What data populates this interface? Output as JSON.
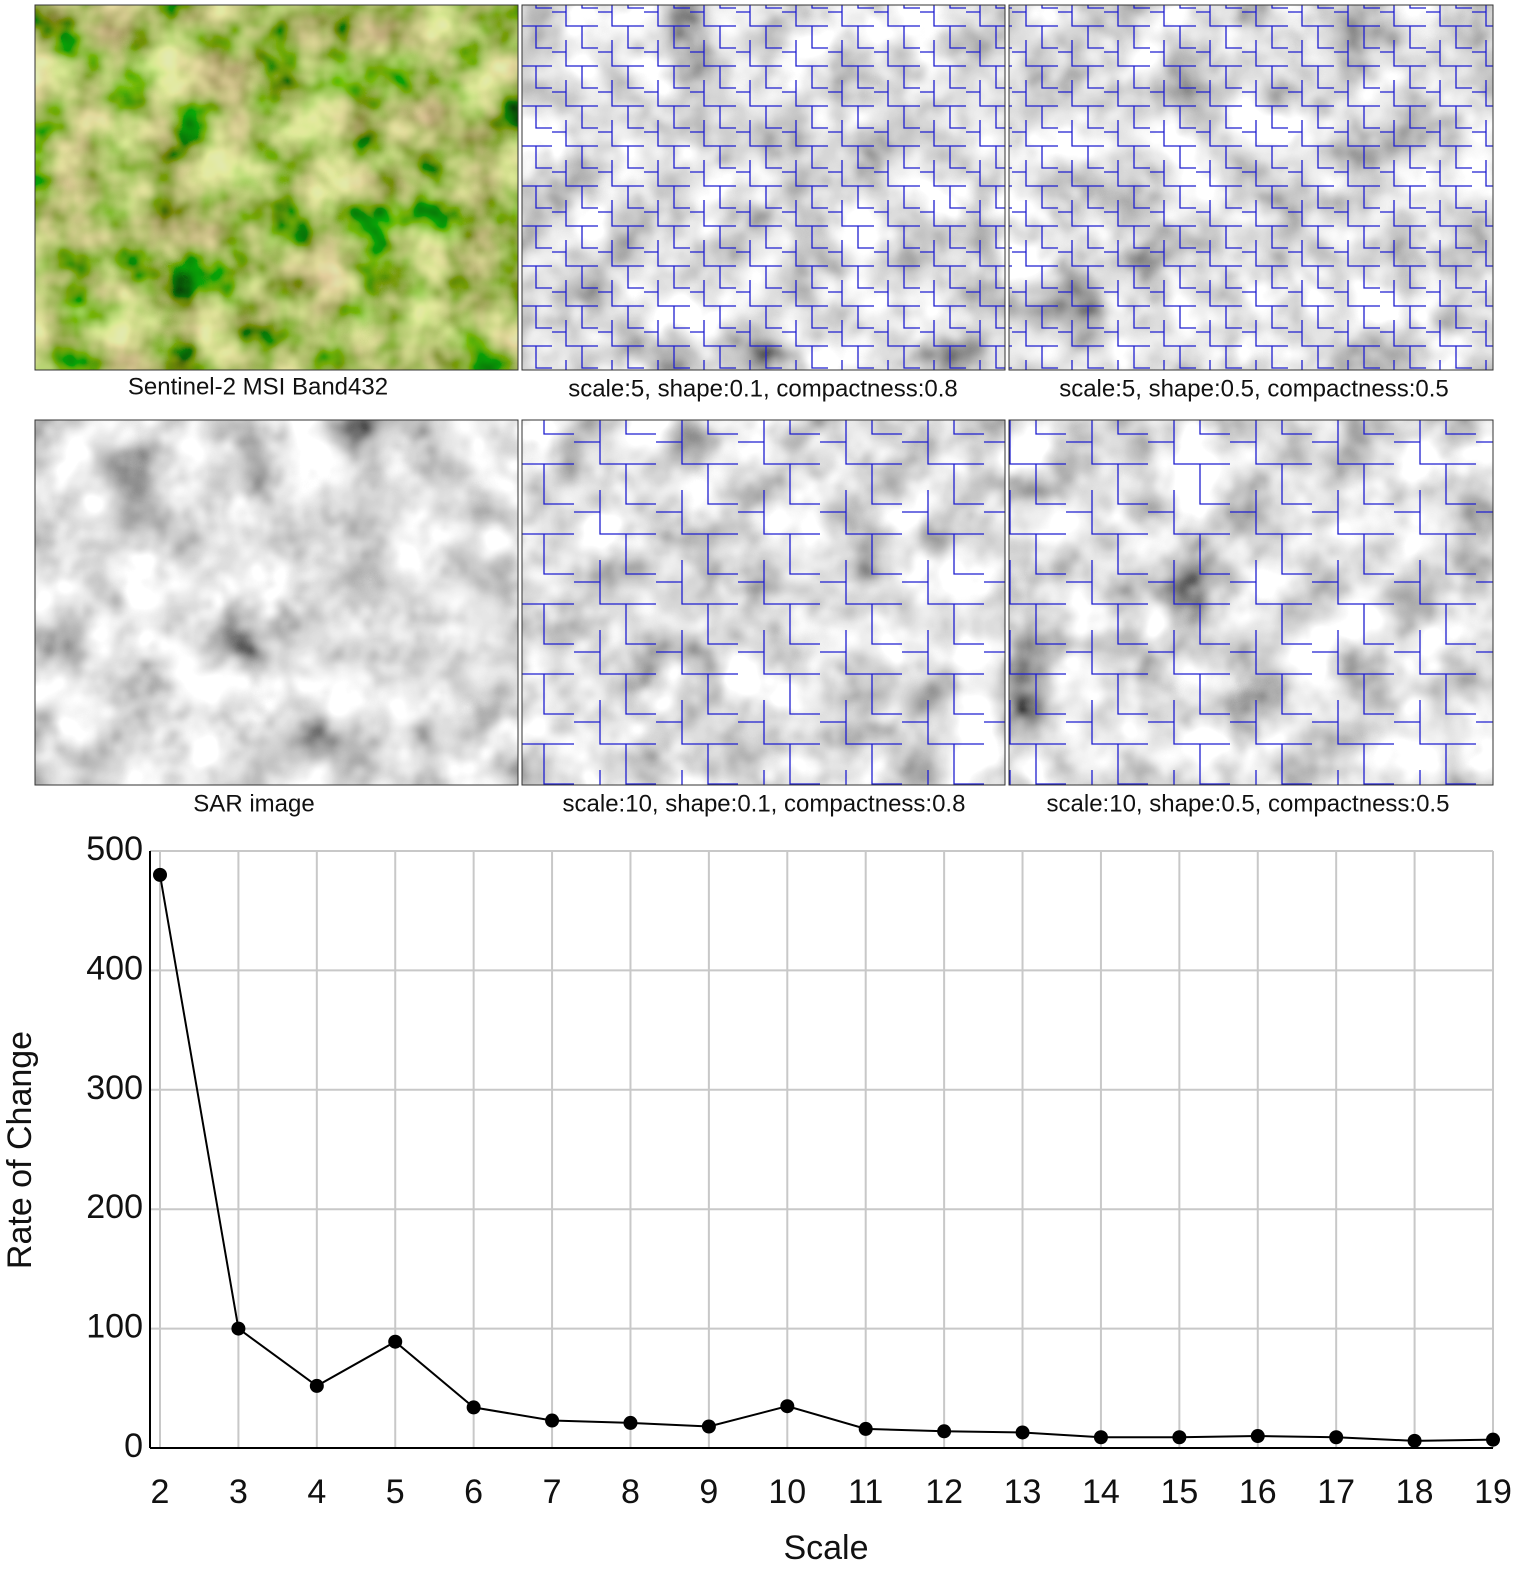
{
  "panels": [
    {
      "caption": "Sentinel-2 MSI Band432"
    },
    {
      "caption": "scale:5, shape:0.1, compactness:0.8"
    },
    {
      "caption": "scale:5, shape:0.5, compactness:0.5"
    },
    {
      "caption": "SAR image"
    },
    {
      "caption": "scale:10, shape:0.1, compactness:0.8"
    },
    {
      "caption": "scale:10, shape:0.5, compactness:0.5"
    }
  ],
  "chart_data": {
    "type": "line",
    "xlabel": "Scale",
    "ylabel": "Rate of Change",
    "x": [
      2,
      3,
      4,
      5,
      6,
      7,
      8,
      9,
      10,
      11,
      12,
      13,
      14,
      15,
      16,
      17,
      18,
      19
    ],
    "values": [
      480,
      100,
      52,
      89,
      34,
      23,
      21,
      18,
      35,
      16,
      14,
      13,
      9,
      9,
      10,
      9,
      6,
      7
    ],
    "color": "#000000",
    "xlim": [
      2,
      19
    ],
    "xticks": [
      2,
      3,
      4,
      5,
      6,
      7,
      8,
      9,
      10,
      11,
      12,
      13,
      14,
      15,
      16,
      17,
      18,
      19
    ],
    "ylim": [
      0,
      500
    ],
    "yticks": [
      0,
      100,
      200,
      300,
      400,
      500
    ],
    "grid": true
  }
}
